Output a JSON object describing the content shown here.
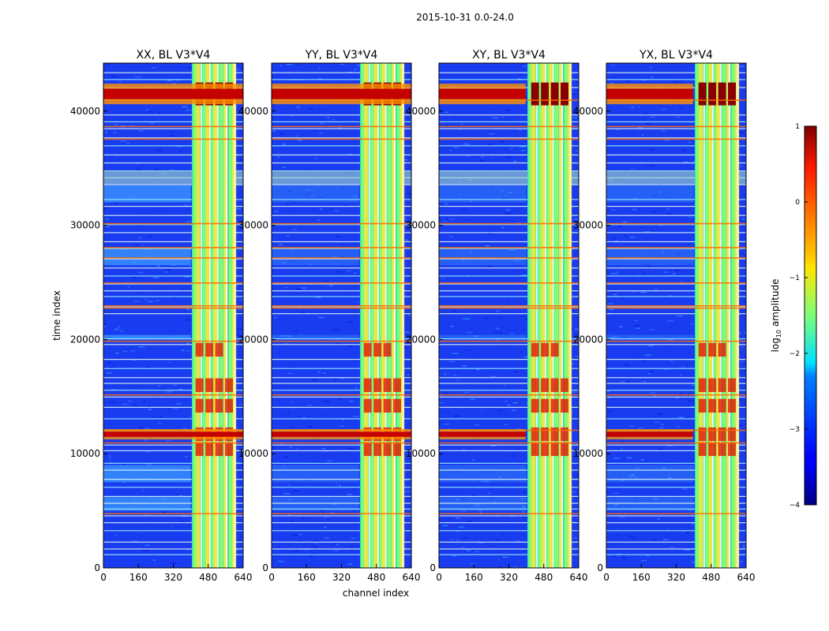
{
  "chart_data": {
    "type": "heatmap",
    "suptitle": "2015-10-31 0.0-24.0",
    "xlabel": "channel index",
    "ylabel": "time index",
    "xlim": [
      0,
      640
    ],
    "ylim": [
      0,
      44200
    ],
    "xticks": [
      0,
      160,
      320,
      480,
      640
    ],
    "yticks": [
      0,
      10000,
      20000,
      30000,
      40000
    ],
    "colormap": "jet",
    "colorbar": {
      "label": "log10 amplitude",
      "label_base": "log",
      "label_sub": "10",
      "label_rest": " amplitude",
      "vmin": -4,
      "vmax": 1,
      "ticks": [
        1,
        0,
        -1,
        -2,
        -3,
        -4
      ]
    },
    "panels": [
      {
        "title": "XX, BL V3*V4",
        "rfi_band_channels": [
          405,
          600
        ],
        "flare_times": [
          41500,
          11700
        ]
      },
      {
        "title": "YY, BL V3*V4",
        "rfi_band_channels": [
          405,
          600
        ],
        "flare_times": [
          41500,
          11700
        ]
      },
      {
        "title": "XY, BL V3*V4",
        "rfi_band_channels": [
          405,
          600
        ],
        "flare_times": [
          41500,
          11700
        ]
      },
      {
        "title": "YX, BL V3*V4",
        "rfi_band_channels": [
          405,
          600
        ],
        "flare_times": [
          41500,
          11700
        ]
      }
    ]
  }
}
